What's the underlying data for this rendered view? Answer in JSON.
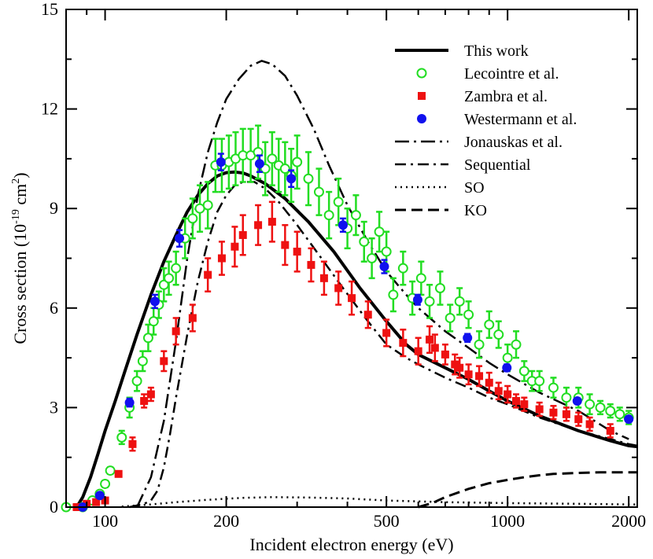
{
  "chart_data": {
    "type": "scatter",
    "title": "",
    "xlabel": "Incident electron energy (eV)",
    "ylabel": {
      "prefix": "Cross section (10",
      "exp1": "-19",
      "mid": " cm",
      "exp2": "2",
      "suffix": ")"
    },
    "xscale": "log",
    "xlim": [
      80,
      2100
    ],
    "ylim": [
      0,
      15
    ],
    "x_ticks": [
      100,
      200,
      500,
      1000,
      2000
    ],
    "x_tick_labels": [
      "100",
      "200",
      "500",
      "1000",
      "2000"
    ],
    "y_ticks": [
      0,
      3,
      6,
      9,
      12,
      15
    ],
    "y_tick_labels": [
      "0",
      "3",
      "6",
      "9",
      "12",
      "15"
    ],
    "legend_position": "top-right",
    "colors": {
      "green": "#22dd22",
      "red": "#ee1111",
      "blue": "#1111ee",
      "line": "#000000"
    },
    "series": [
      {
        "name": "This work",
        "kind": "line",
        "style": "solid",
        "x": [
          85,
          88,
          92,
          96,
          100,
          106,
          112,
          120,
          130,
          140,
          150,
          160,
          170,
          180,
          190,
          200,
          210,
          220,
          230,
          250,
          280,
          320,
          370,
          430,
          500,
          560,
          600,
          700,
          800,
          900,
          1000,
          1200,
          1500,
          1800,
          2000,
          2100
        ],
        "y": [
          0.0,
          0.3,
          0.9,
          1.6,
          2.3,
          3.2,
          4.1,
          5.2,
          6.4,
          7.4,
          8.2,
          8.9,
          9.4,
          9.75,
          9.98,
          10.08,
          10.1,
          10.07,
          9.98,
          9.75,
          9.3,
          8.6,
          7.7,
          6.6,
          5.6,
          4.9,
          4.6,
          4.2,
          3.85,
          3.5,
          3.2,
          2.75,
          2.3,
          2.0,
          1.85,
          1.82
        ]
      },
      {
        "name": "Lecointre et al.",
        "kind": "points",
        "marker": "open-circle",
        "color": "#22dd22",
        "x": [
          80,
          88,
          93,
          97,
          100,
          103,
          110,
          115,
          120,
          124,
          128,
          132,
          136,
          140,
          144,
          150,
          158,
          165,
          172,
          180,
          188,
          195,
          203,
          211,
          220,
          230,
          240,
          250,
          260,
          270,
          280,
          290,
          300,
          320,
          340,
          360,
          380,
          400,
          420,
          440,
          460,
          480,
          500,
          520,
          550,
          580,
          610,
          640,
          680,
          720,
          760,
          800,
          850,
          900,
          950,
          1000,
          1050,
          1100,
          1150,
          1200,
          1300,
          1400,
          1500,
          1600,
          1700,
          1800,
          1900,
          2000
        ],
        "y": [
          0.0,
          0.0,
          0.2,
          0.4,
          0.7,
          1.1,
          2.1,
          3.0,
          3.8,
          4.4,
          5.1,
          5.6,
          6.1,
          6.7,
          6.9,
          7.2,
          8.1,
          8.7,
          9.0,
          9.1,
          10.3,
          10.3,
          10.4,
          10.5,
          10.6,
          10.6,
          10.7,
          10.2,
          10.5,
          10.3,
          10.2,
          10.0,
          10.4,
          9.9,
          9.5,
          8.8,
          9.2,
          8.4,
          8.8,
          8.0,
          7.5,
          8.3,
          7.7,
          6.4,
          7.2,
          6.3,
          6.9,
          6.2,
          6.6,
          5.7,
          6.2,
          5.8,
          4.9,
          5.5,
          5.2,
          4.5,
          4.9,
          4.1,
          3.8,
          3.8,
          3.6,
          3.3,
          3.3,
          3.1,
          3.0,
          2.9,
          2.8,
          2.7
        ],
        "err": [
          0.0,
          0.0,
          0.0,
          0.0,
          0.1,
          0.1,
          0.2,
          0.3,
          0.3,
          0.3,
          0.4,
          0.4,
          0.4,
          0.5,
          0.5,
          0.5,
          0.6,
          0.6,
          0.7,
          0.7,
          0.8,
          0.8,
          0.8,
          0.8,
          0.8,
          0.8,
          0.8,
          0.8,
          0.8,
          0.8,
          0.8,
          0.8,
          0.8,
          0.8,
          0.7,
          0.7,
          0.7,
          0.6,
          0.6,
          0.6,
          0.6,
          0.6,
          0.6,
          0.5,
          0.5,
          0.5,
          0.5,
          0.5,
          0.5,
          0.4,
          0.4,
          0.4,
          0.4,
          0.4,
          0.4,
          0.4,
          0.4,
          0.3,
          0.3,
          0.3,
          0.3,
          0.3,
          0.3,
          0.3,
          0.2,
          0.2,
          0.2,
          0.2
        ]
      },
      {
        "name": "Zambra et al.",
        "kind": "points",
        "marker": "filled-square",
        "color": "#ee1111",
        "x": [
          85,
          90,
          95,
          100,
          108,
          117,
          125,
          130,
          140,
          150,
          165,
          180,
          195,
          210,
          220,
          240,
          260,
          280,
          300,
          325,
          350,
          380,
          410,
          450,
          500,
          550,
          600,
          640,
          660,
          700,
          740,
          760,
          800,
          850,
          900,
          950,
          1000,
          1050,
          1100,
          1200,
          1300,
          1400,
          1500,
          1600,
          1800
        ],
        "y": [
          0.0,
          0.1,
          0.15,
          0.2,
          1.0,
          1.9,
          3.2,
          3.4,
          4.4,
          5.3,
          5.7,
          7.0,
          7.5,
          7.85,
          8.2,
          8.5,
          8.6,
          7.9,
          7.7,
          7.3,
          6.9,
          6.6,
          6.3,
          5.8,
          5.25,
          4.95,
          4.7,
          5.05,
          4.8,
          4.6,
          4.3,
          4.2,
          4.0,
          3.95,
          3.75,
          3.5,
          3.4,
          3.2,
          3.1,
          2.95,
          2.85,
          2.8,
          2.65,
          2.5,
          2.3
        ],
        "err": [
          0.0,
          0.0,
          0.0,
          0.0,
          0.0,
          0.2,
          0.2,
          0.2,
          0.3,
          0.4,
          0.4,
          0.5,
          0.5,
          0.6,
          0.6,
          0.6,
          0.6,
          0.6,
          0.6,
          0.5,
          0.5,
          0.5,
          0.5,
          0.4,
          0.4,
          0.4,
          0.4,
          0.4,
          0.4,
          0.3,
          0.3,
          0.3,
          0.3,
          0.3,
          0.3,
          0.25,
          0.25,
          0.2,
          0.2,
          0.2,
          0.2,
          0.2,
          0.2,
          0.2,
          0.2
        ]
      },
      {
        "name": "Westermann et al.",
        "kind": "points",
        "marker": "filled-circle",
        "color": "#1111ee",
        "x": [
          88,
          97,
          115,
          133,
          153,
          194,
          242,
          290,
          390,
          494,
          598,
          795,
          996,
          1490,
          2000
        ],
        "y": [
          0.0,
          0.35,
          3.15,
          6.2,
          8.1,
          10.4,
          10.35,
          9.9,
          8.5,
          7.25,
          6.25,
          5.1,
          4.2,
          3.2,
          2.65
        ],
        "err": [
          0.0,
          0.05,
          0.12,
          0.2,
          0.25,
          0.25,
          0.25,
          0.25,
          0.2,
          0.2,
          0.15,
          0.12,
          0.1,
          0.08,
          0.06
        ]
      },
      {
        "name": "Jonauskas et al.",
        "kind": "line",
        "style": "dash-dot-long",
        "x": [
          120,
          130,
          140,
          150,
          160,
          170,
          180,
          190,
          200,
          215,
          230,
          245,
          260,
          280,
          300,
          330,
          360,
          400,
          450,
          500,
          560,
          600,
          700,
          800,
          900,
          1000,
          1200,
          1500,
          1800,
          2000
        ],
        "y": [
          0.0,
          0.9,
          2.6,
          5.0,
          7.5,
          9.4,
          10.7,
          11.6,
          12.3,
          12.9,
          13.3,
          13.45,
          13.35,
          13.0,
          12.4,
          11.4,
          10.3,
          9.1,
          8.0,
          7.1,
          6.4,
          6.0,
          5.3,
          4.8,
          4.35,
          4.0,
          3.45,
          2.9,
          2.3,
          2.05
        ]
      },
      {
        "name": "Sequential",
        "kind": "line",
        "style": "dash-dot",
        "x": [
          115,
          125,
          130,
          135,
          140,
          145,
          150,
          160,
          170,
          180,
          190,
          200,
          210,
          220,
          235,
          250,
          270,
          300,
          340,
          390,
          450,
          500,
          560,
          600,
          700,
          800,
          900,
          1000,
          1200,
          1500,
          1800,
          2000,
          2100
        ],
        "y": [
          0.0,
          0.1,
          0.2,
          0.5,
          1.2,
          2.2,
          3.3,
          5.2,
          6.8,
          8.0,
          8.9,
          9.4,
          9.7,
          9.8,
          9.8,
          9.6,
          9.2,
          8.5,
          7.6,
          6.6,
          5.6,
          4.9,
          4.5,
          4.3,
          3.9,
          3.6,
          3.3,
          3.1,
          2.7,
          2.3,
          2.05,
          1.9,
          1.85
        ]
      },
      {
        "name": "SO",
        "kind": "line",
        "style": "dotted",
        "x": [
          110,
          130,
          150,
          180,
          220,
          260,
          320,
          400,
          500,
          700,
          1000,
          1500,
          2000,
          2100
        ],
        "y": [
          0.02,
          0.08,
          0.15,
          0.22,
          0.28,
          0.3,
          0.29,
          0.26,
          0.2,
          0.15,
          0.12,
          0.1,
          0.08,
          0.08
        ]
      },
      {
        "name": "KO",
        "kind": "line",
        "style": "dashed",
        "x": [
          600,
          650,
          700,
          800,
          900,
          1000,
          1100,
          1200,
          1300,
          1500,
          1700,
          2000,
          2100
        ],
        "y": [
          0.0,
          0.12,
          0.3,
          0.55,
          0.72,
          0.82,
          0.9,
          0.96,
          1.0,
          1.03,
          1.05,
          1.05,
          1.05
        ]
      }
    ]
  }
}
